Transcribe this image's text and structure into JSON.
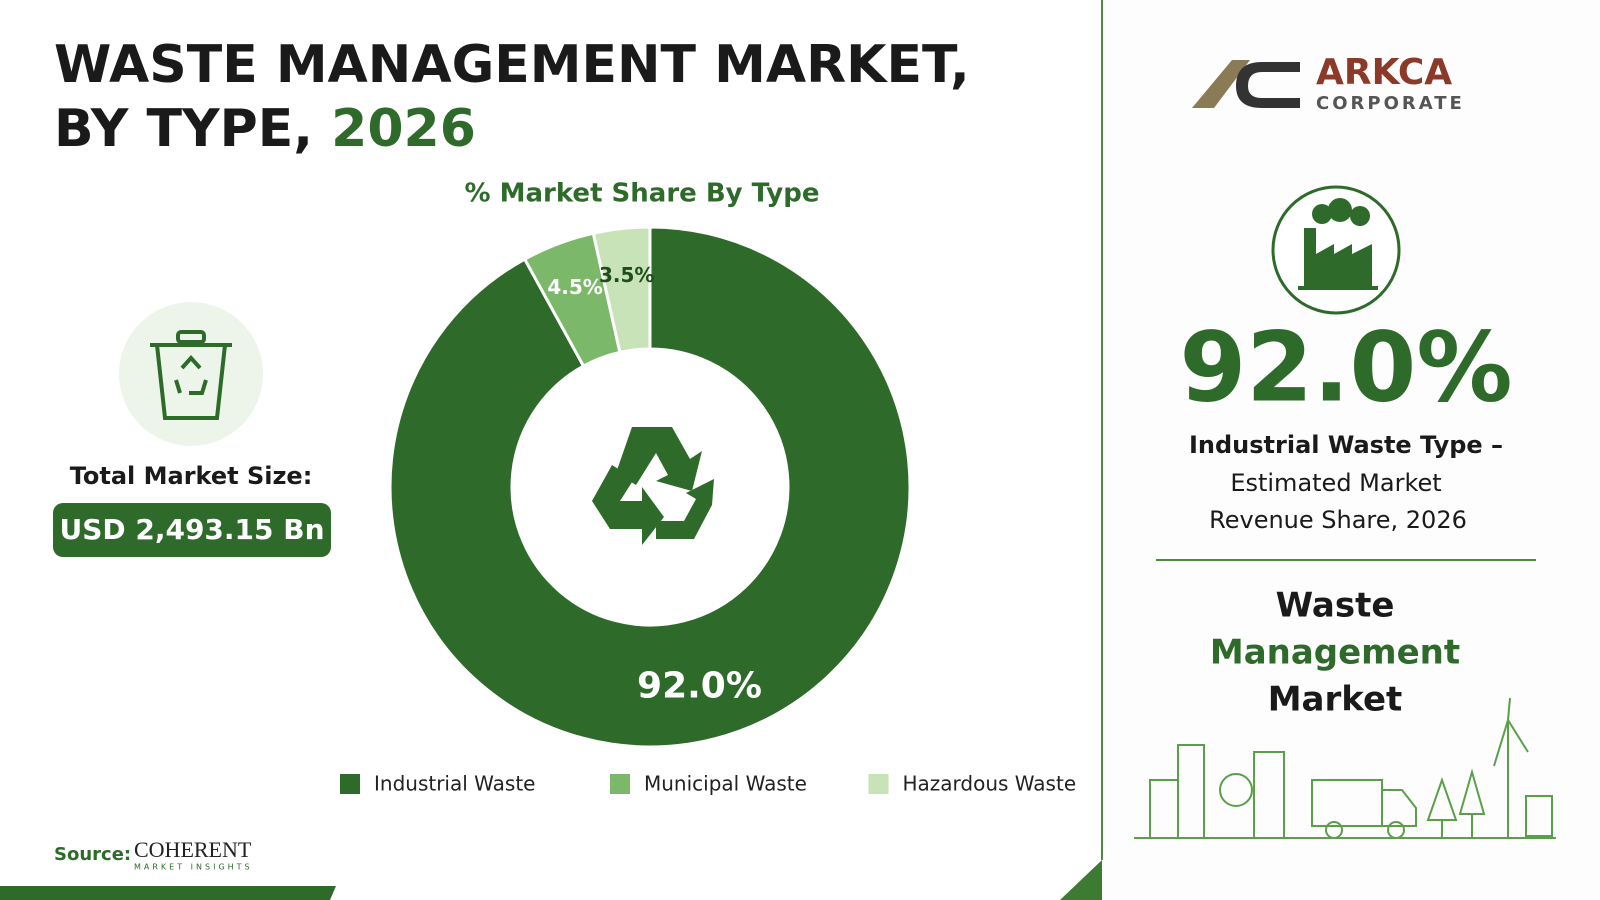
{
  "header": {
    "title_line1": "WASTE MANAGEMENT MARKET,",
    "title_line2": "BY TYPE,",
    "title_year": "2026"
  },
  "left_panel": {
    "label": "Total Market Size:",
    "market_size": "USD 2,493.15 Bn"
  },
  "source": {
    "label": "Source:",
    "brand": "COHERENT",
    "brand_sub": "MARKET INSIGHTS"
  },
  "logo": {
    "name": "ARKCA",
    "sub": "CORPORATE"
  },
  "highlight": {
    "stat": "92.0%",
    "line1": "Industrial Waste Type –",
    "line2": "Estimated Market",
    "line3": "Revenue Share, 2026"
  },
  "market_title": {
    "line1": "Waste",
    "line2": "Management",
    "line3": "Market"
  },
  "chart_data": {
    "type": "pie",
    "subtitle": "% Market Share By Type",
    "categories": [
      "Industrial Waste",
      "Municipal Waste",
      "Hazardous Waste"
    ],
    "values": [
      92.0,
      4.5,
      3.5
    ],
    "value_labels": [
      "92.0%",
      "4.5%",
      "3.5%"
    ],
    "colors": [
      "#2e6b2a",
      "#7cb86a",
      "#c8e3b8"
    ],
    "donut": true
  }
}
